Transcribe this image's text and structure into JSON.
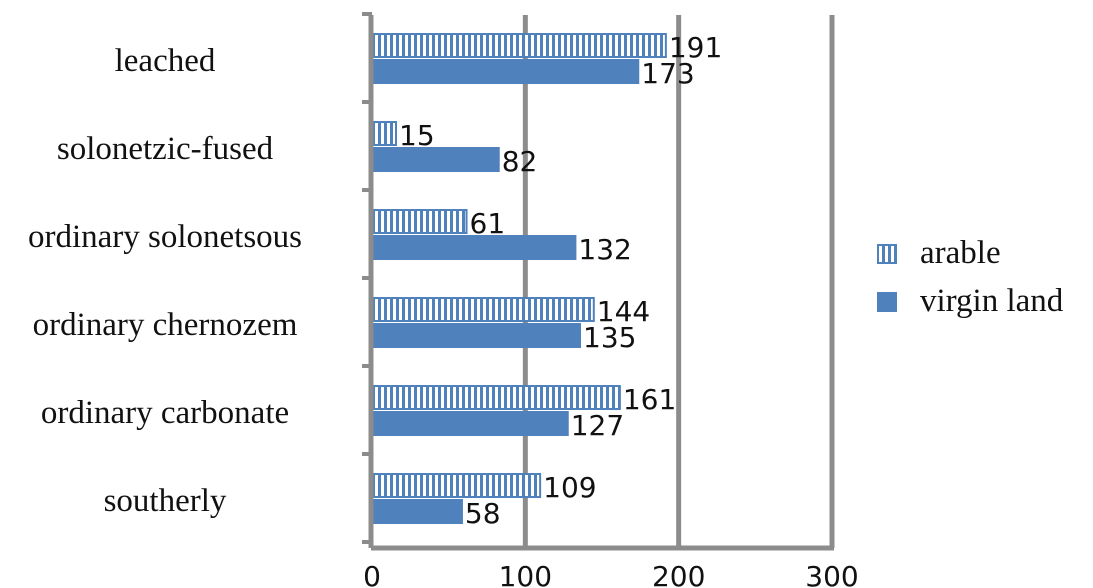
{
  "chart_data": {
    "type": "bar",
    "orientation": "horizontal",
    "categories": [
      "leached",
      "solonetzic-fused",
      "ordinary solonetsous",
      "ordinary chernozem",
      "ordinary carbonate",
      "southerly"
    ],
    "series": [
      {
        "name": "arable",
        "values": [
          191,
          15,
          61,
          144,
          161,
          109
        ],
        "color": "#4f81bd",
        "pattern": "vertical-stripes"
      },
      {
        "name": "virgin land",
        "values": [
          173,
          82,
          132,
          135,
          127,
          58
        ],
        "color": "#4f81bd",
        "pattern": "solid"
      }
    ],
    "xlim": [
      0,
      300
    ],
    "xticks": [
      "0",
      "100",
      "200",
      "300"
    ],
    "grid": true,
    "legend_position": "right",
    "title": "",
    "xlabel": "",
    "ylabel": ""
  }
}
